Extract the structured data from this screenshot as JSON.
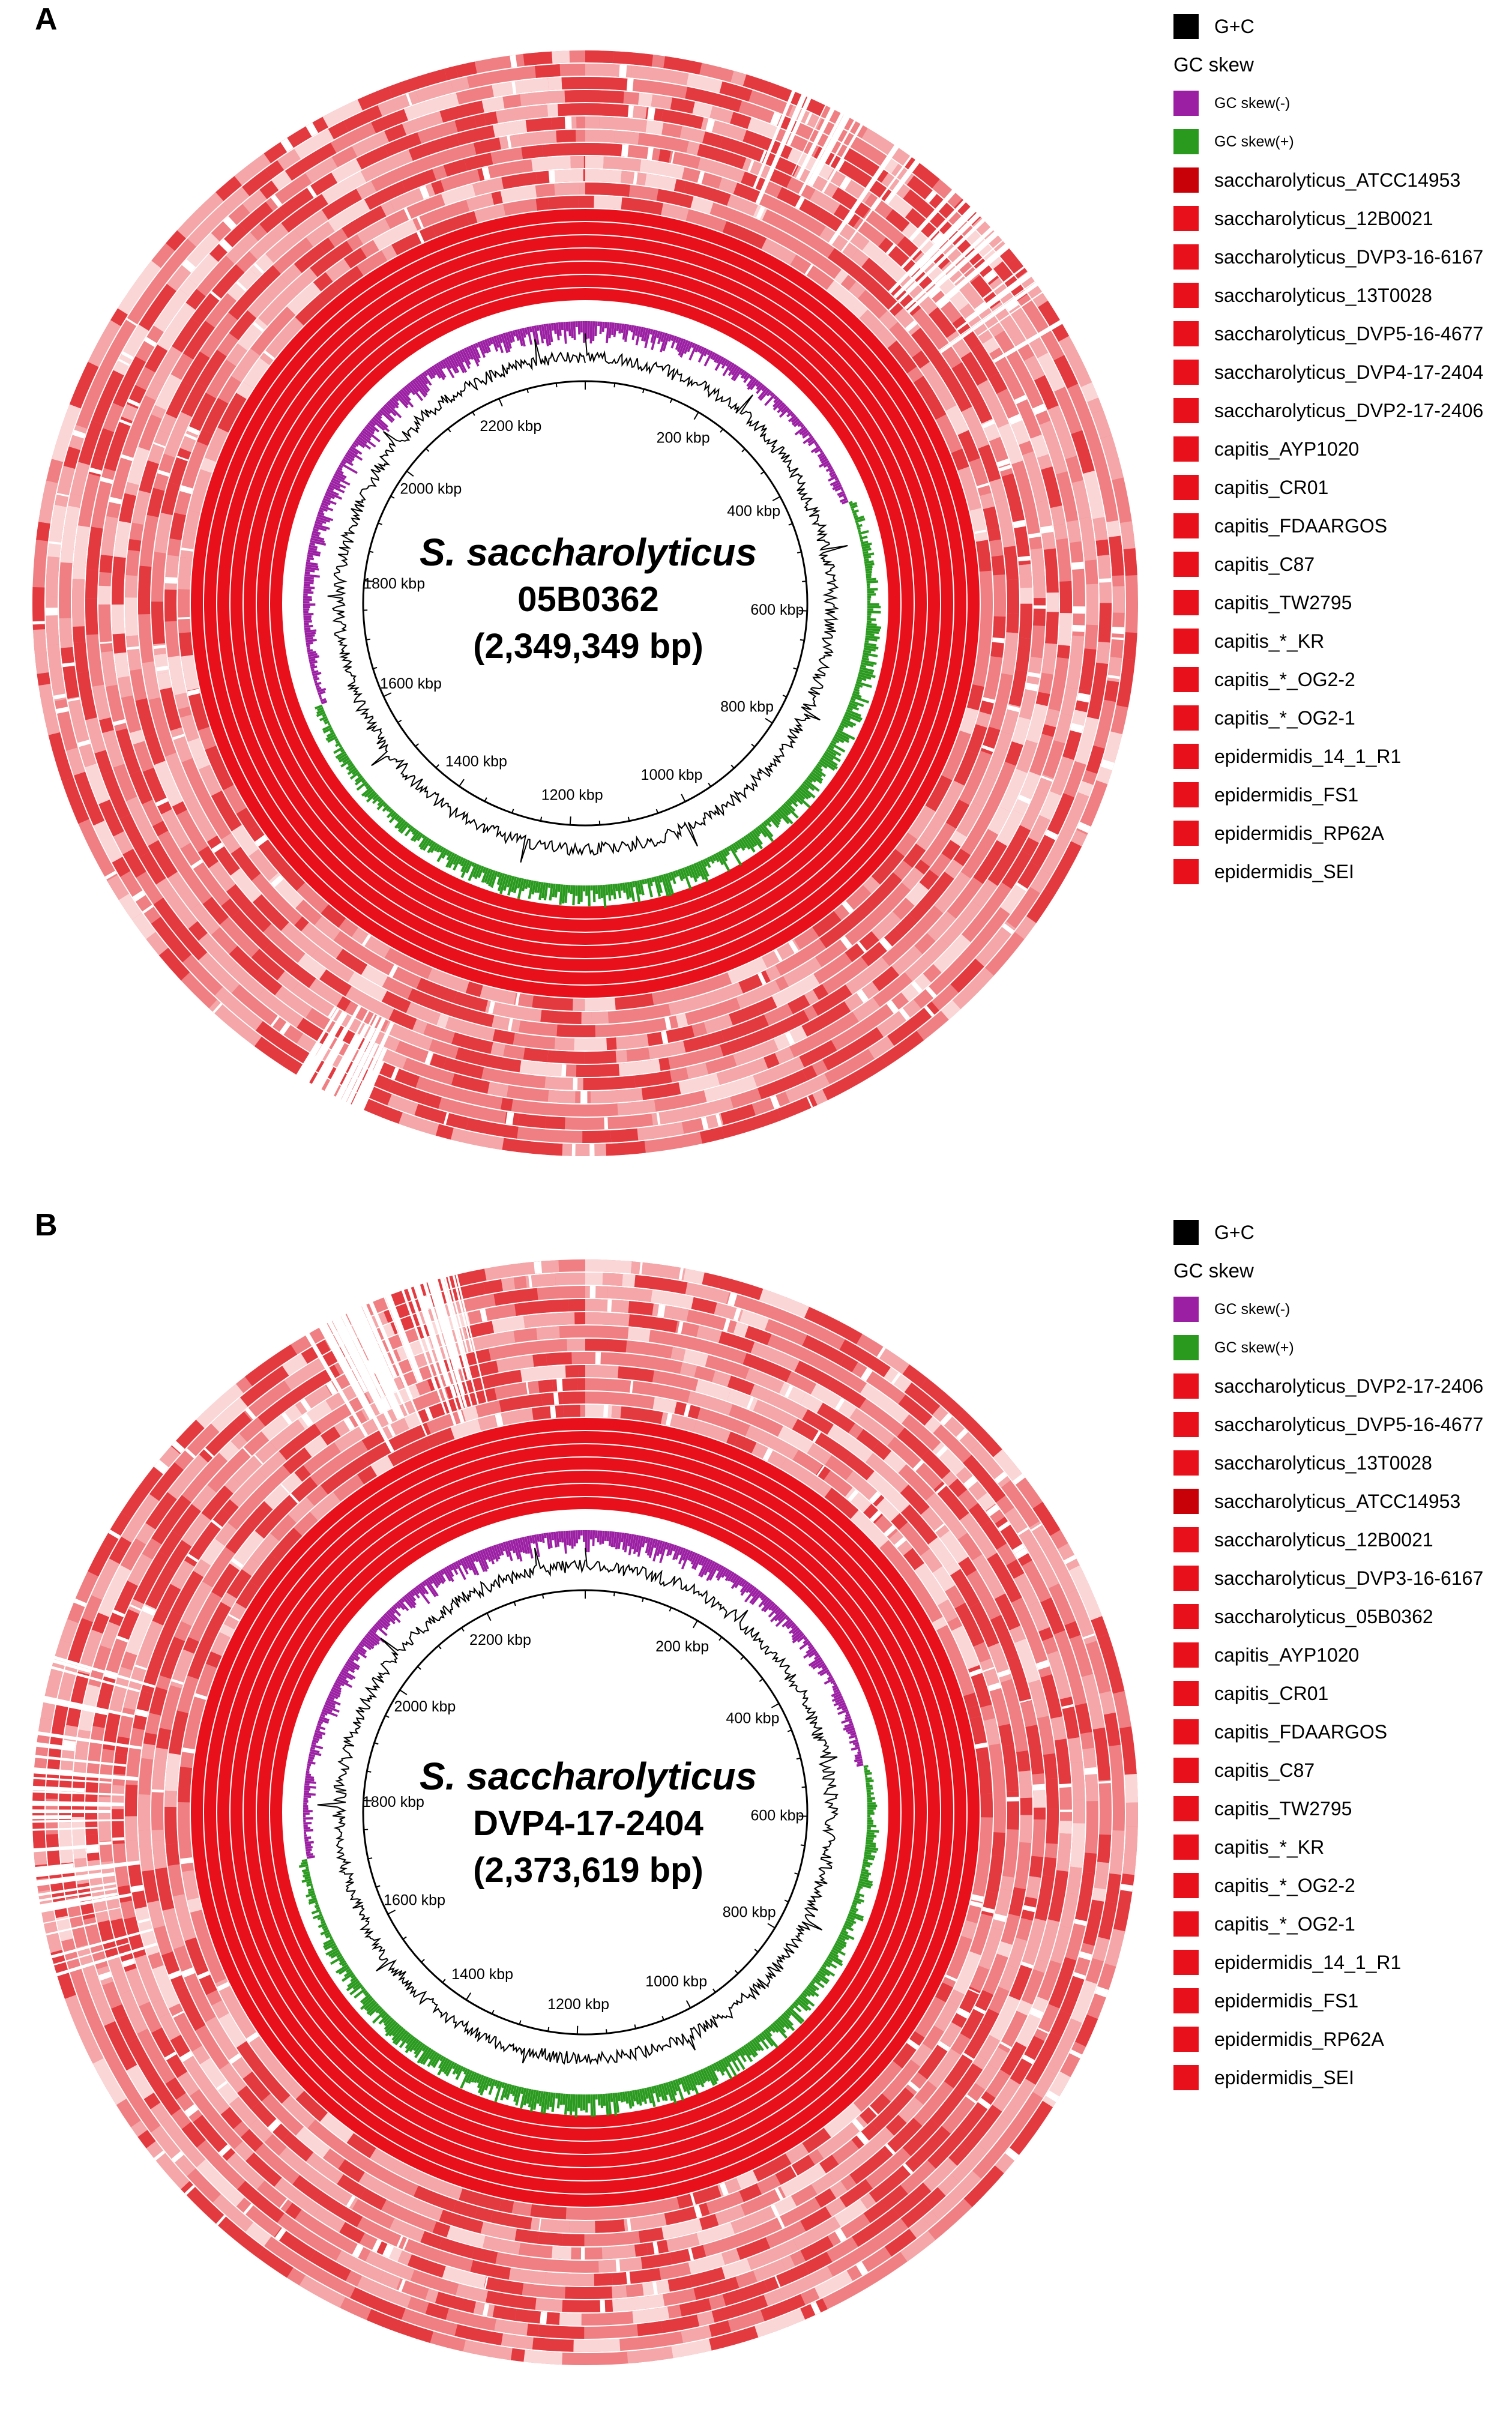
{
  "colors": {
    "gc_content": "#000000",
    "gc_skew_minus": "#9b1fa3",
    "gc_skew_plus": "#2a9a1f",
    "ring_full": "#e8101a",
    "ring_reference_dark": "#c80008",
    "ring_light": "#ef7f82"
  },
  "panels": [
    {
      "letter": "A",
      "title_species": "S. saccharolyticus",
      "title_strain": "05B0362",
      "title_size": "(2,349,349 bp)",
      "kbp_labels": [
        "200 kbp",
        "400 kbp",
        "600 kbp",
        "800 kbp",
        "1000 kbp",
        "1200 kbp",
        "1400 kbp",
        "1600 kbp",
        "1800 kbp",
        "2000 kbp",
        "2200 kbp"
      ],
      "legend": {
        "gc_label": "G+C",
        "skew_heading": "GC skew",
        "skew_minus": "GC skew(-)",
        "skew_plus": "GC skew(+)",
        "genomes": [
          "saccharolyticus_ATCC14953",
          "saccharolyticus_12B0021",
          "saccharolyticus_DVP3-16-6167",
          "saccharolyticus_13T0028",
          "saccharolyticus_DVP5-16-4677",
          "saccharolyticus_DVP4-17-2404",
          "saccharolyticus_DVP2-17-2406",
          "capitis_AYP1020",
          "capitis_CR01",
          "capitis_FDAARGOS",
          "capitis_C87",
          "capitis_TW2795",
          "capitis_*_KR",
          "capitis_*_OG2-2",
          "capitis_*_OG2-1",
          "epidermidis_14_1_R1",
          "epidermidis_FS1",
          "epidermidis_RP62A",
          "epidermidis_SEI"
        ]
      }
    },
    {
      "letter": "B",
      "title_species": "S. saccharolyticus",
      "title_strain": "DVP4-17-2404",
      "title_size": "(2,373,619 bp)",
      "kbp_labels": [
        "200 kbp",
        "400 kbp",
        "600 kbp",
        "800 kbp",
        "1000 kbp",
        "1200 kbp",
        "1400 kbp",
        "1600 kbp",
        "1800 kbp",
        "2000 kbp",
        "2200 kbp"
      ],
      "legend": {
        "gc_label": "G+C",
        "skew_heading": "GC skew",
        "skew_minus": "GC skew(-)",
        "skew_plus": "GC skew(+)",
        "genomes": [
          "saccharolyticus_DVP2-17-2406",
          "saccharolyticus_DVP5-16-4677",
          "saccharolyticus_13T0028",
          "saccharolyticus_ATCC14953",
          "saccharolyticus_12B0021",
          "saccharolyticus_DVP3-16-6167",
          "saccharolyticus_05B0362",
          "capitis_AYP1020",
          "capitis_CR01",
          "capitis_FDAARGOS",
          "capitis_C87",
          "capitis_TW2795",
          "capitis_*_KR",
          "capitis_*_OG2-2",
          "capitis_*_OG2-1",
          "epidermidis_14_1_R1",
          "epidermidis_FS1",
          "epidermidis_RP62A",
          "epidermidis_SEI"
        ]
      }
    }
  ]
}
